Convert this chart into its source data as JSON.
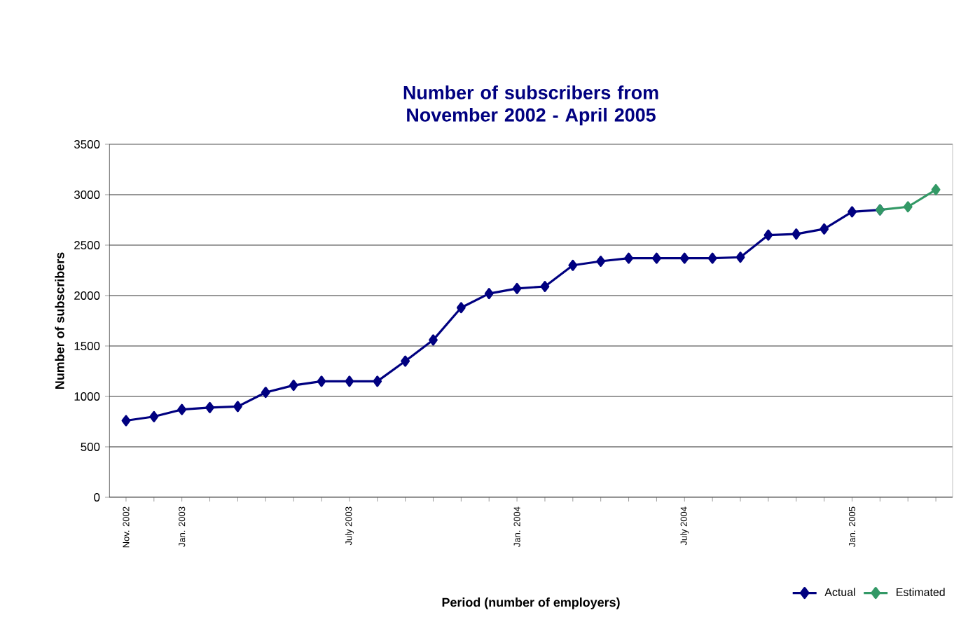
{
  "chart_data": {
    "type": "line",
    "title": "Number of subscribers from November 2002 - April 2005",
    "xlabel": "Period (number of employers)",
    "ylabel": "Number of subscribers",
    "categories": [
      "Nov. 2002",
      null,
      "Jan. 2003",
      null,
      null,
      null,
      null,
      null,
      "July 2003",
      null,
      null,
      null,
      null,
      null,
      "Jan. 2004",
      null,
      null,
      null,
      null,
      null,
      "July 2004",
      null,
      null,
      null,
      null,
      null,
      "Jan. 2005",
      null,
      null,
      null
    ],
    "series": [
      {
        "name": "Actual",
        "color": "#000080",
        "values": [
          760,
          800,
          870,
          890,
          900,
          1040,
          1110,
          1150,
          1150,
          1150,
          1350,
          1560,
          1880,
          2020,
          2070,
          2090,
          2300,
          2340,
          2370,
          2370,
          2370,
          2370,
          2380,
          2600,
          2610,
          2660,
          2830,
          2850,
          null,
          null
        ]
      },
      {
        "name": "Estimated",
        "color": "#339966",
        "values": [
          null,
          null,
          null,
          null,
          null,
          null,
          null,
          null,
          null,
          null,
          null,
          null,
          null,
          null,
          null,
          null,
          null,
          null,
          null,
          null,
          null,
          null,
          null,
          null,
          null,
          null,
          null,
          2850,
          2880,
          3050
        ]
      }
    ],
    "ylim": [
      0,
      3500
    ],
    "yticks": [
      0,
      500,
      1000,
      1500,
      2000,
      2500,
      3000,
      3500
    ],
    "grid": "y",
    "legend": "bottom right",
    "marker": "diamond",
    "line_style": "solid"
  }
}
